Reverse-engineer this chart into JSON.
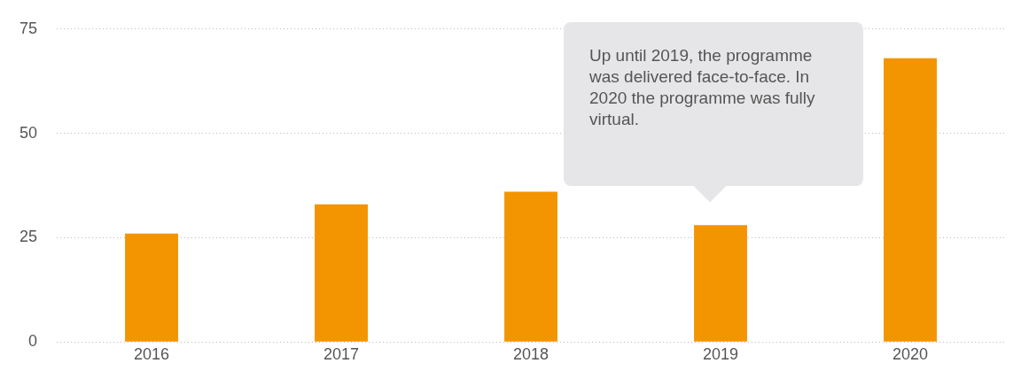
{
  "chart_data": {
    "type": "bar",
    "categories": [
      "2016",
      "2017",
      "2018",
      "2019",
      "2020"
    ],
    "values": [
      26,
      33,
      36,
      28,
      68
    ],
    "color": "#f39500",
    "ylim": [
      0,
      75
    ],
    "yticks": [
      0,
      25,
      50,
      75
    ],
    "grid": "y",
    "annotations": [
      "Up until 2019, the programme was delivered face-to-face. In 2020 the programme was fully virtual."
    ]
  }
}
